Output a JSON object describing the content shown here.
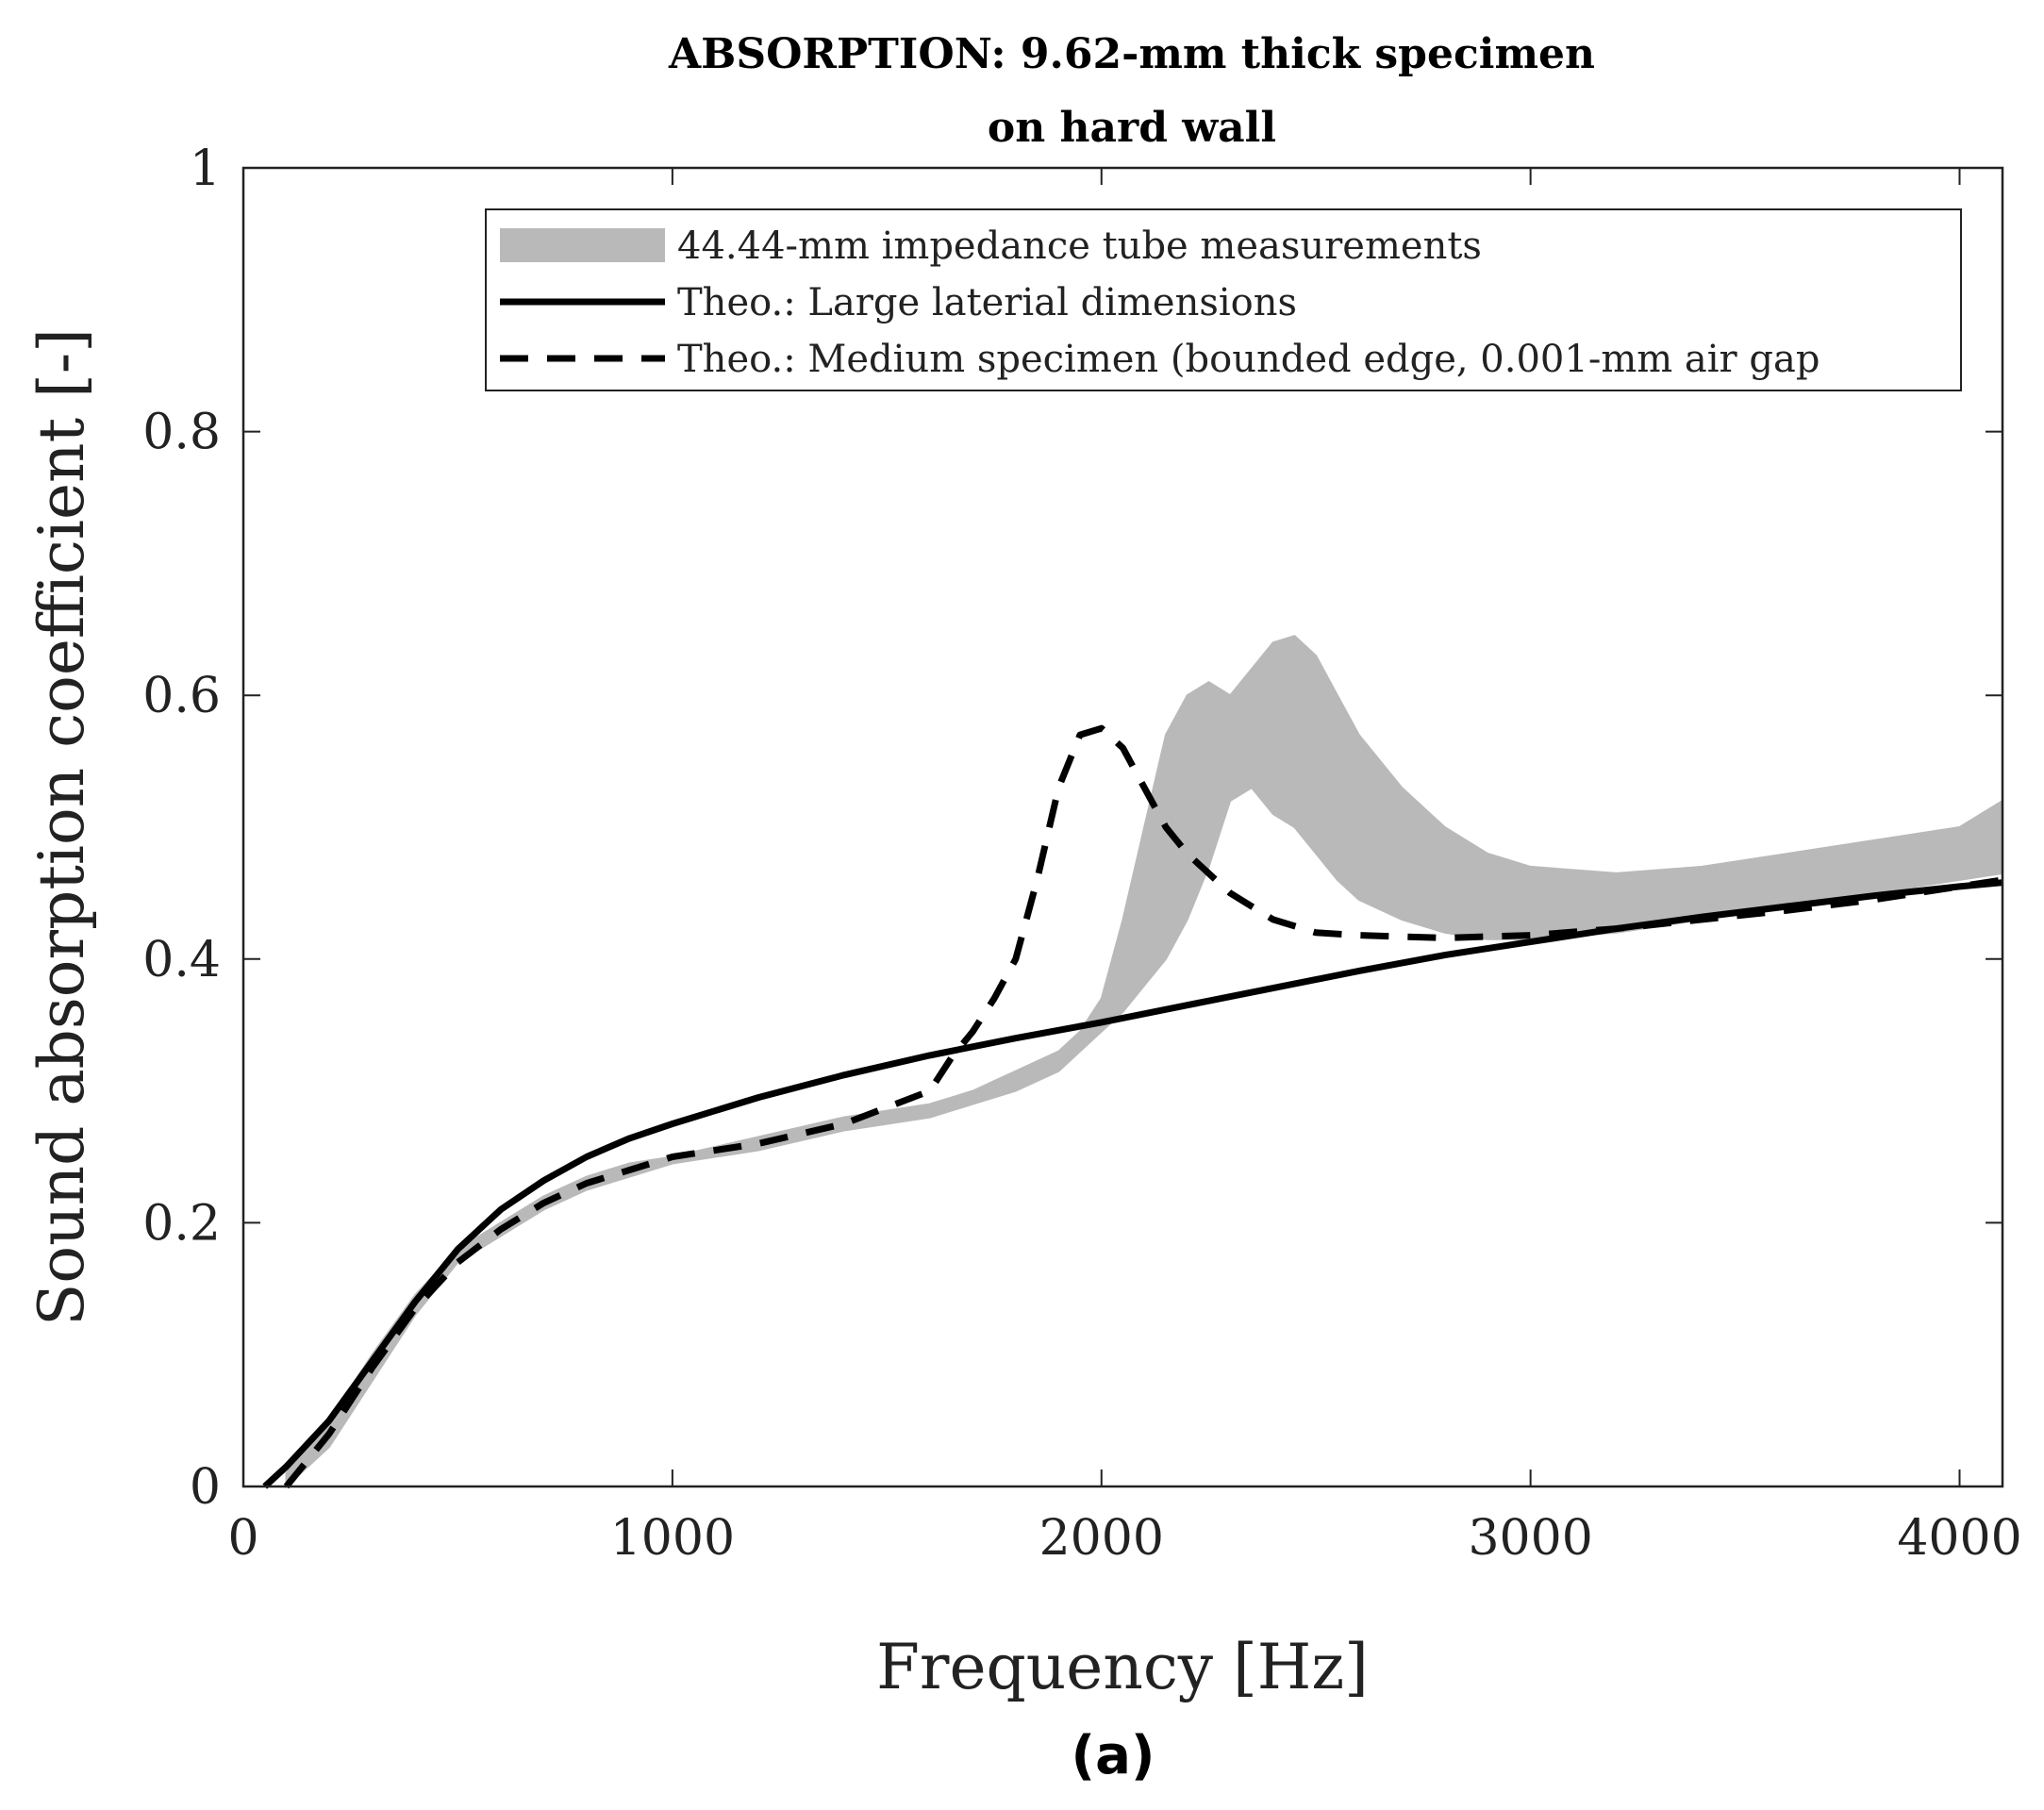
{
  "chart_data": {
    "type": "line",
    "title_lines": [
      "ABSORPTION: 9.62-mm thick specimen",
      "on hard wall"
    ],
    "xlabel": "Frequency [Hz]",
    "ylabel": "Sound absorption coefficient [-]",
    "xlim": [
      0,
      4100
    ],
    "ylim": [
      0,
      1
    ],
    "xticks": [
      0,
      1000,
      2000,
      3000,
      4000
    ],
    "xtick_labels": [
      "0",
      "1000",
      "2000",
      "3000",
      "4000"
    ],
    "yticks": [
      0,
      0.2,
      0.4,
      0.6,
      0.8,
      1
    ],
    "ytick_labels": [
      "0",
      "0.2",
      "0.4",
      "0.6",
      "0.8",
      "1"
    ],
    "grid": false,
    "legend_position": "top-right",
    "caption": "(a)",
    "series": [
      {
        "name": "44.44-mm impedance tube measurements",
        "style": "band",
        "color": "#b9b9b9",
        "x": [
          100,
          200,
          300,
          400,
          500,
          600,
          700,
          800,
          900,
          1000,
          1200,
          1400,
          1600,
          1700,
          1800,
          1900,
          1950,
          2000,
          2050,
          2100,
          2150,
          2200,
          2250,
          2300,
          2350,
          2400,
          2450,
          2500,
          2550,
          2600,
          2700,
          2800,
          2900,
          3000,
          3200,
          3400,
          3600,
          3800,
          4000,
          4100
        ],
        "lower": [
          0.0,
          0.03,
          0.08,
          0.13,
          0.17,
          0.19,
          0.21,
          0.225,
          0.235,
          0.245,
          0.255,
          0.27,
          0.28,
          0.29,
          0.3,
          0.315,
          0.33,
          0.345,
          0.36,
          0.38,
          0.4,
          0.43,
          0.47,
          0.52,
          0.53,
          0.51,
          0.5,
          0.48,
          0.46,
          0.445,
          0.43,
          0.42,
          0.415,
          0.415,
          0.42,
          0.43,
          0.44,
          0.45,
          0.46,
          0.465
        ],
        "upper": [
          0.01,
          0.05,
          0.1,
          0.145,
          0.18,
          0.2,
          0.22,
          0.235,
          0.245,
          0.25,
          0.265,
          0.28,
          0.29,
          0.3,
          0.315,
          0.33,
          0.345,
          0.37,
          0.43,
          0.5,
          0.57,
          0.6,
          0.61,
          0.6,
          0.62,
          0.64,
          0.645,
          0.63,
          0.6,
          0.57,
          0.53,
          0.5,
          0.48,
          0.47,
          0.465,
          0.47,
          0.48,
          0.49,
          0.5,
          0.52
        ]
      },
      {
        "name": "Theo.: Large laterial dimensions",
        "style": "solid",
        "color": "#000000",
        "x": [
          50,
          100,
          200,
          300,
          400,
          500,
          600,
          700,
          800,
          900,
          1000,
          1200,
          1400,
          1600,
          1800,
          2000,
          2200,
          2400,
          2600,
          2800,
          3000,
          3200,
          3400,
          3600,
          3800,
          4000,
          4100
        ],
        "y": [
          0.0,
          0.015,
          0.05,
          0.095,
          0.14,
          0.18,
          0.21,
          0.232,
          0.25,
          0.264,
          0.275,
          0.295,
          0.312,
          0.327,
          0.34,
          0.352,
          0.365,
          0.378,
          0.391,
          0.403,
          0.413,
          0.423,
          0.432,
          0.44,
          0.448,
          0.455,
          0.458
        ]
      },
      {
        "name": "Theo.: Medium specimen (bounded edge, 0.001-mm air gap",
        "style": "dashed",
        "color": "#000000",
        "x": [
          100,
          200,
          300,
          400,
          500,
          600,
          700,
          800,
          900,
          1000,
          1200,
          1400,
          1600,
          1650,
          1700,
          1750,
          1800,
          1850,
          1900,
          1950,
          2000,
          2050,
          2100,
          2150,
          2200,
          2300,
          2400,
          2500,
          2600,
          2800,
          3000,
          3200,
          3400,
          3600,
          3800,
          4000,
          4100
        ],
        "y": [
          0.0,
          0.04,
          0.09,
          0.135,
          0.17,
          0.195,
          0.215,
          0.23,
          0.24,
          0.25,
          0.26,
          0.275,
          0.3,
          0.325,
          0.345,
          0.37,
          0.4,
          0.46,
          0.53,
          0.57,
          0.575,
          0.56,
          0.53,
          0.5,
          0.48,
          0.45,
          0.43,
          0.42,
          0.418,
          0.416,
          0.418,
          0.423,
          0.43,
          0.437,
          0.445,
          0.455,
          0.46
        ]
      }
    ]
  }
}
